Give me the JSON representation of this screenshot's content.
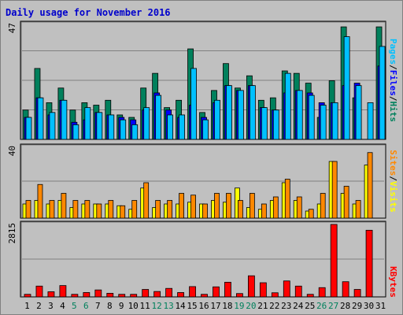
{
  "title": "Daily usage for November 2016",
  "colors": {
    "pages": "#00c0ff",
    "files": "#0000ff",
    "hits": "#00805c",
    "visits": "#ffff00",
    "sites": "#ff8800",
    "kbytes": "#ff0000",
    "weekend": "#00805c",
    "weekday": "#000000"
  },
  "legend_top": {
    "hits": "Hits",
    "files": "Files",
    "pages": "Pages",
    "sep": "/"
  },
  "legend_mid": {
    "visits": "Visits",
    "sites": "Sites",
    "sep": "/"
  },
  "legend_bot": {
    "kbytes": "KBytes"
  },
  "chart_data": {
    "type": "bar",
    "categories": [
      "1",
      "2",
      "3",
      "4",
      "5",
      "6",
      "7",
      "8",
      "9",
      "10",
      "11",
      "12",
      "13",
      "14",
      "15",
      "16",
      "17",
      "18",
      "19",
      "20",
      "21",
      "22",
      "23",
      "24",
      "25",
      "26",
      "27",
      "28",
      "29",
      "30",
      "31"
    ],
    "weekend_days": [
      "5",
      "6",
      "12",
      "13",
      "19",
      "20",
      "26",
      "27"
    ],
    "panels": [
      {
        "name": "hits-files-pages",
        "ymax_label": "47",
        "ymax": 47,
        "series": [
          {
            "name": "Hits",
            "values": [
              12,
              29,
              15,
              21,
              12,
              15,
              14,
              16,
              10,
              9,
              21,
              27,
              13,
              16,
              37,
              11,
              20,
              31,
              21,
              26,
              16,
              17,
              28,
              27,
              23,
              9,
              24,
              46,
              17,
              0,
              46
            ]
          },
          {
            "name": "Files",
            "values": [
              9,
              17,
              10,
              16,
              7,
              8,
              11,
              10,
              9,
              8,
              12,
              19,
              12,
              9,
              14,
              9,
              15,
              22,
              20,
              22,
              13,
              12,
              19,
              20,
              19,
              15,
              15,
              22,
              23,
              0,
              30
            ]
          },
          {
            "name": "Pages",
            "values": [
              9,
              17,
              11,
              16,
              6,
              13,
              11,
              10,
              8,
              6,
              13,
              18,
              10,
              10,
              29,
              8,
              16,
              22,
              20,
              22,
              13,
              12,
              27,
              20,
              18,
              14,
              15,
              42,
              22,
              15,
              38
            ]
          }
        ]
      },
      {
        "name": "visits-sites",
        "ymax_label": "40",
        "ymax": 40,
        "series": [
          {
            "name": "Visits",
            "values": [
              8,
              10,
              8,
              10,
              6,
              8,
              8,
              8,
              7,
              5,
              17,
              6,
              8,
              8,
              9,
              8,
              10,
              9,
              17,
              6,
              5,
              10,
              20,
              10,
              4,
              8,
              32,
              14,
              8,
              30,
              0
            ]
          },
          {
            "name": "Sites",
            "values": [
              10,
              19,
              10,
              14,
              10,
              10,
              8,
              10,
              7,
              10,
              20,
              10,
              10,
              14,
              13,
              8,
              14,
              14,
              10,
              14,
              8,
              12,
              22,
              12,
              5,
              14,
              32,
              18,
              10,
              37,
              0
            ]
          }
        ]
      },
      {
        "name": "kbytes",
        "ymax_label": "2815",
        "ymax": 2815,
        "series": [
          {
            "name": "KBytes",
            "values": [
              100,
              420,
              200,
              440,
              100,
              170,
              270,
              140,
              100,
              100,
              290,
              210,
              330,
              170,
              400,
              100,
              390,
              570,
              130,
              820,
              550,
              160,
              620,
              420,
              100,
              360,
              2815,
              590,
              290,
              2590,
              0
            ]
          }
        ]
      }
    ]
  }
}
